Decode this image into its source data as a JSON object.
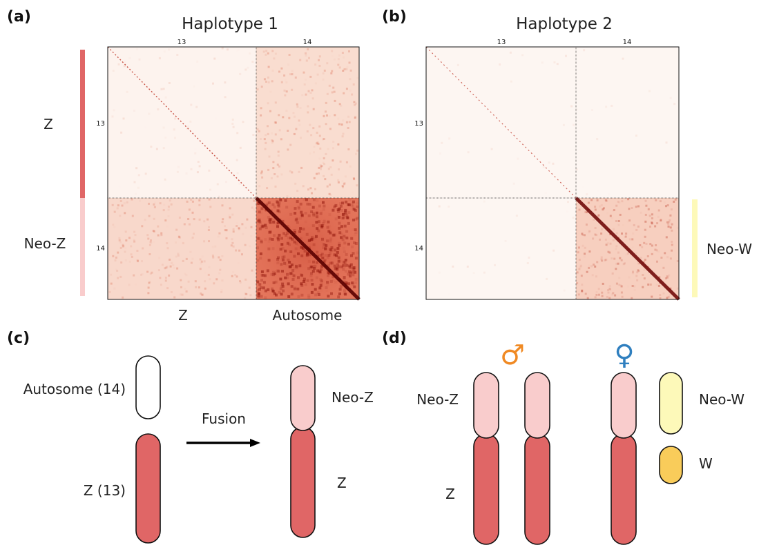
{
  "panels": {
    "a": {
      "label": "(a)",
      "title": "Haplotype 1",
      "top_ticks": [
        "13",
        "14"
      ],
      "left_ticks": [
        "13",
        "14"
      ],
      "side_labels": [
        "Z",
        "Neo-Z"
      ],
      "bottom_labels": [
        "Z",
        "Autosome"
      ]
    },
    "b": {
      "label": "(b)",
      "title": "Haplotype 2",
      "top_ticks": [
        "13",
        "14"
      ],
      "left_ticks": [
        "13",
        "14"
      ],
      "side_label": "Neo-W"
    },
    "c": {
      "label": "(c)",
      "autosome_label": "Autosome (14)",
      "z_label": "Z (13)",
      "arrow_label": "Fusion",
      "neoz_label": "Neo-Z",
      "z_fused_label": "Z"
    },
    "d": {
      "label": "(d)",
      "male_symbol": "♂",
      "female_symbol": "♀",
      "neoz_label": "Neo-Z",
      "z_label": "Z",
      "neow_label": "Neo-W",
      "w_label": "W"
    }
  },
  "colors": {
    "z": "#e06666",
    "neo_z": "#f9cccc",
    "neo_w": "#fdf9b9",
    "w": "#f9cc5a",
    "autosome": "#ffffff",
    "male_symbol": "#f08a24",
    "female_symbol": "#2f7fbf",
    "side_bar_neo_w": "#fdf9b9",
    "heatmap_low": "#fdf3ee",
    "heatmap_high": "#6b0000"
  }
}
